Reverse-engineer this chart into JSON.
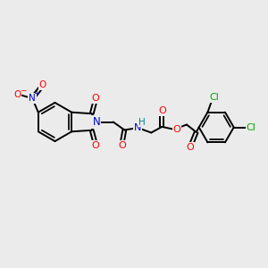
{
  "bg_color": "#ebebeb",
  "bond_color": "#000000",
  "bond_lw": 1.4,
  "atom_colors": {
    "O": "#ff0000",
    "N": "#0000cd",
    "Cl": "#00aa00",
    "H": "#008888",
    "C": "#000000"
  },
  "font_size": 7.5
}
